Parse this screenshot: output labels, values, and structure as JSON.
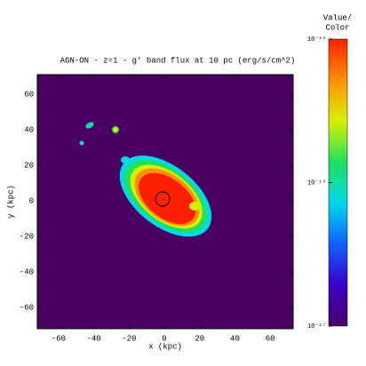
{
  "chart_data": {
    "type": "image",
    "title": "AGN-ON - z=1 - g' band flux at 10 pc (erg/s/cm^2)",
    "x_label": "x (kpc)",
    "y_label": "y (kpc)",
    "xlim": [
      -72,
      73
    ],
    "ylim": [
      -72,
      71
    ],
    "xticks": [
      -60,
      -40,
      -20,
      0,
      20,
      40,
      60
    ],
    "yticks": [
      -60,
      -40,
      -20,
      0,
      20,
      40,
      60
    ],
    "background": "#4a0063",
    "colorbar": {
      "label": [
        "Value/",
        "Color"
      ],
      "log_scale": true,
      "clim": [
        1e-17,
        1e-15
      ],
      "ticks": [
        {
          "value": 1e-15,
          "label": "10⁻¹⁵"
        },
        {
          "value": 1e-16,
          "label": "10⁻¹⁶"
        },
        {
          "value": 1e-17,
          "label": "10⁻¹⁷"
        }
      ],
      "colormap": [
        "#4a0063",
        "#3a00c8",
        "#1060ff",
        "#00d8e8",
        "#20e060",
        "#d8f000",
        "#ff9000",
        "#ff2000"
      ]
    }
  }
}
